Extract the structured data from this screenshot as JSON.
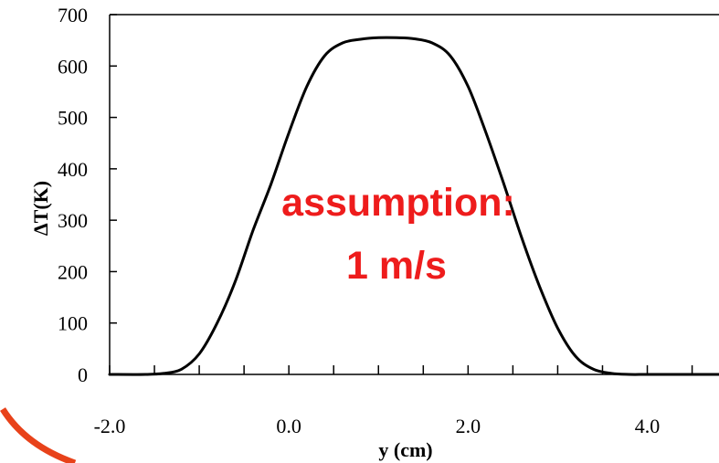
{
  "chart_data": {
    "type": "line",
    "title": "",
    "xlabel": "y (cm)",
    "ylabel": "ΔT(K)",
    "xlim": [
      -2.0,
      4.8
    ],
    "ylim": [
      0,
      700
    ],
    "x_ticks": [
      -2.0,
      0.0,
      2.0,
      4.0
    ],
    "x_tick_labels": [
      "-2.0",
      "0.0",
      "2.0",
      "4.0"
    ],
    "y_ticks": [
      0,
      100,
      200,
      300,
      400,
      500,
      600,
      700
    ],
    "y_tick_labels": [
      "0",
      "100",
      "200",
      "300",
      "400",
      "500",
      "600",
      "700"
    ],
    "grid": false,
    "series": [
      {
        "x": [
          -2.0,
          -1.6,
          -1.4,
          -1.2,
          -1.0,
          -0.8,
          -0.6,
          -0.4,
          -0.2,
          0.0,
          0.2,
          0.4,
          0.6,
          0.8,
          1.0,
          1.2,
          1.4,
          1.6,
          1.8,
          2.0,
          2.2,
          2.4,
          2.6,
          2.8,
          3.0,
          3.2,
          3.4,
          3.6,
          3.8,
          4.0,
          4.4,
          4.8
        ],
        "y": [
          0,
          0,
          2,
          10,
          40,
          100,
          180,
          280,
          370,
          470,
          560,
          620,
          645,
          652,
          655,
          655,
          653,
          645,
          620,
          560,
          470,
          370,
          265,
          170,
          90,
          35,
          10,
          2,
          0,
          0,
          0,
          0
        ]
      }
    ],
    "annotations": [
      "assumption:",
      "1 m/s"
    ],
    "annotation_color": "#ee1c1c",
    "line_color": "#000000"
  }
}
